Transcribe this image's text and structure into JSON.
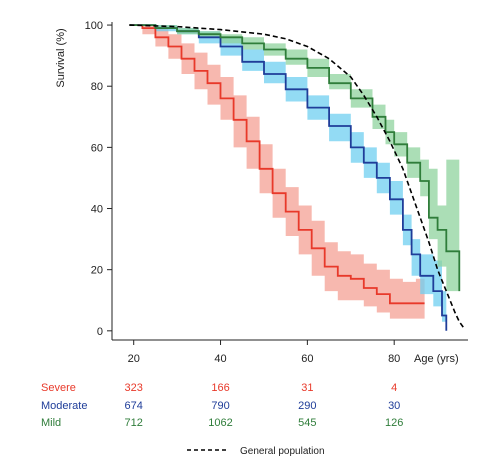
{
  "chart_data": {
    "type": "line",
    "ylabel": "Survival (%)",
    "xlabel": "Age (yrs)",
    "xlim": [
      15,
      97
    ],
    "ylim": [
      -3,
      101
    ],
    "xticks": [
      20,
      40,
      60,
      80
    ],
    "yticks": [
      0,
      20,
      40,
      60,
      80,
      100
    ],
    "grid": false,
    "legend": {
      "position": "bottom",
      "label": "General population"
    },
    "colors": {
      "severe": "#e8392a",
      "severe_band": "#f4a094",
      "moderate": "#1f3d99",
      "moderate_band": "#6fcff0",
      "mild": "#2f7d3a",
      "mild_band": "#8fd39d",
      "population": "#000000"
    },
    "series": [
      {
        "name": "Severe",
        "key": "severe",
        "x": [
          19,
          22,
          25,
          28,
          31,
          34,
          37,
          40,
          43,
          46,
          49,
          52,
          55,
          58,
          61,
          64,
          67,
          70,
          73,
          76,
          79,
          82,
          85,
          87
        ],
        "y": [
          100,
          99,
          96,
          93,
          89,
          85,
          81,
          76,
          69,
          62,
          53,
          45,
          39,
          33,
          27,
          21,
          18,
          17,
          14,
          12,
          9,
          9,
          9,
          9
        ],
        "lower": [
          100,
          97,
          93,
          89,
          84,
          79,
          74,
          69,
          60,
          53,
          45,
          37,
          31,
          25,
          18,
          13,
          10,
          10,
          8,
          6,
          4,
          4,
          4,
          4
        ],
        "upper": [
          100,
          100,
          99,
          97,
          94,
          91,
          87,
          83,
          77,
          70,
          61,
          53,
          47,
          41,
          36,
          29,
          26,
          25,
          22,
          20,
          17,
          16,
          17,
          17
        ]
      },
      {
        "name": "Moderate",
        "key": "moderate",
        "x": [
          19,
          25,
          30,
          35,
          40,
          45,
          50,
          55,
          60,
          65,
          70,
          73,
          76,
          79,
          82,
          84,
          86,
          89,
          91,
          92
        ],
        "y": [
          100,
          99,
          98,
          96,
          93,
          88,
          84,
          79,
          73,
          67,
          60,
          55,
          50,
          43,
          33,
          25,
          18,
          13,
          5,
          0
        ],
        "lower": [
          100,
          98,
          97,
          94,
          90,
          85,
          81,
          75,
          69,
          62,
          55,
          50,
          45,
          38,
          28,
          18,
          12,
          8,
          3,
          0
        ],
        "upper": [
          100,
          100,
          99,
          98,
          96,
          92,
          88,
          83,
          77,
          71,
          65,
          60,
          55,
          49,
          38,
          30,
          25,
          23,
          13,
          6
        ]
      },
      {
        "name": "Mild",
        "key": "mild",
        "x": [
          19,
          25,
          30,
          35,
          40,
          45,
          50,
          55,
          60,
          65,
          70,
          75,
          78,
          80,
          83,
          86,
          88,
          90,
          92,
          95
        ],
        "y": [
          100,
          99,
          98,
          97,
          96,
          94,
          92,
          89,
          86,
          81,
          76,
          70,
          65,
          61,
          55,
          49,
          37,
          33,
          26,
          13
        ],
        "lower": [
          100,
          99,
          97,
          96,
          94,
          92,
          90,
          87,
          83,
          79,
          73,
          66,
          61,
          57,
          50,
          44,
          30,
          21,
          13,
          3
        ],
        "upper": [
          100,
          100,
          99,
          98,
          97,
          96,
          94,
          92,
          89,
          84,
          79,
          74,
          69,
          65,
          60,
          56,
          53,
          41,
          56,
          56
        ]
      },
      {
        "name": "General population",
        "key": "population",
        "x": [
          19,
          30,
          40,
          50,
          55,
          60,
          65,
          70,
          73,
          76,
          79,
          82,
          85,
          88,
          90,
          92,
          94,
          95,
          96
        ],
        "y": [
          100,
          99.5,
          98.5,
          97,
          95.5,
          93,
          89,
          83,
          77,
          70,
          62,
          53,
          41,
          29,
          20,
          13,
          6,
          3,
          1
        ]
      }
    ],
    "risk_table": {
      "x": [
        20,
        40,
        60,
        80
      ],
      "rows": [
        {
          "label": "Severe",
          "key": "severe",
          "values": [
            "323",
            "166",
            "31",
            "4"
          ]
        },
        {
          "label": "Moderate",
          "key": "moderate",
          "values": [
            "674",
            "790",
            "290",
            "30"
          ]
        },
        {
          "label": "Mild",
          "key": "mild",
          "values": [
            "712",
            "1062",
            "545",
            "126"
          ]
        }
      ]
    }
  }
}
